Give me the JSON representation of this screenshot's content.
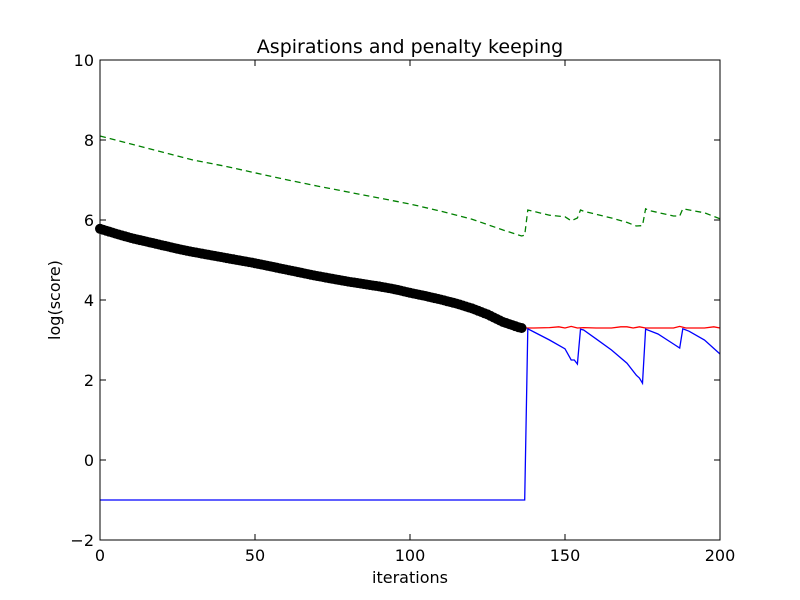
{
  "chart_data": {
    "type": "line",
    "title": "Aspirations and penalty keeping",
    "xlabel": "iterations",
    "ylabel": "log(score)",
    "xlim": [
      0,
      200
    ],
    "ylim": [
      -2,
      10
    ],
    "xticks": [
      0,
      50,
      100,
      150,
      200
    ],
    "yticks": [
      -2,
      0,
      2,
      4,
      6,
      8,
      10
    ],
    "xtick_labels": [
      "0",
      "50",
      "100",
      "150",
      "200"
    ],
    "ytick_labels": [
      "−2",
      "0",
      "2",
      "4",
      "6",
      "8",
      "10"
    ],
    "grid": false,
    "legend": "none",
    "series": [
      {
        "style": "markers",
        "color": "#000000",
        "x": [
          0,
          5,
          10,
          15,
          20,
          25,
          30,
          35,
          40,
          45,
          50,
          55,
          60,
          65,
          70,
          75,
          80,
          85,
          90,
          95,
          100,
          105,
          110,
          115,
          120,
          125,
          130,
          135,
          136
        ],
        "y": [
          5.78,
          5.66,
          5.55,
          5.46,
          5.37,
          5.28,
          5.2,
          5.13,
          5.06,
          4.99,
          4.92,
          4.84,
          4.76,
          4.68,
          4.6,
          4.53,
          4.46,
          4.4,
          4.34,
          4.27,
          4.18,
          4.1,
          4.01,
          3.91,
          3.79,
          3.64,
          3.45,
          3.32,
          3.3
        ]
      },
      {
        "style": "dashed",
        "color": "#008000",
        "x": [
          0,
          10,
          20,
          30,
          40,
          50,
          60,
          70,
          80,
          90,
          100,
          110,
          120,
          130,
          136,
          137,
          138,
          145,
          150,
          152,
          154,
          155,
          156,
          165,
          170,
          173,
          175,
          176,
          177,
          185,
          187,
          188,
          195,
          200
        ],
        "y": [
          8.1,
          7.9,
          7.7,
          7.5,
          7.35,
          7.18,
          7.01,
          6.85,
          6.7,
          6.55,
          6.4,
          6.22,
          6.02,
          5.75,
          5.6,
          5.62,
          6.25,
          6.12,
          6.08,
          5.98,
          6.05,
          6.25,
          6.22,
          6.05,
          5.94,
          5.85,
          5.86,
          6.28,
          6.24,
          6.1,
          6.1,
          6.28,
          6.18,
          6.03
        ]
      },
      {
        "style": "solid",
        "color": "#ff0000",
        "x": [
          137,
          140,
          145,
          148,
          150,
          152,
          154,
          156,
          160,
          165,
          168,
          170,
          172,
          174,
          176,
          180,
          185,
          187,
          189,
          195,
          198,
          200
        ],
        "y": [
          3.3,
          3.3,
          3.31,
          3.33,
          3.3,
          3.34,
          3.3,
          3.31,
          3.3,
          3.3,
          3.33,
          3.33,
          3.3,
          3.33,
          3.3,
          3.3,
          3.3,
          3.34,
          3.3,
          3.3,
          3.33,
          3.3
        ]
      },
      {
        "style": "solid",
        "color": "#0000ff",
        "x": [
          0,
          137,
          138,
          140,
          145,
          150,
          152,
          153,
          154,
          155,
          156,
          160,
          165,
          170,
          173,
          174,
          175,
          176,
          180,
          185,
          187,
          188,
          190,
          195,
          200
        ],
        "y": [
          -1.0,
          -1.0,
          3.28,
          3.2,
          3.0,
          2.78,
          2.5,
          2.5,
          2.4,
          3.27,
          3.25,
          3.03,
          2.75,
          2.42,
          2.12,
          2.05,
          1.92,
          3.27,
          3.15,
          2.9,
          2.8,
          3.28,
          3.22,
          3.0,
          2.65
        ]
      }
    ]
  }
}
